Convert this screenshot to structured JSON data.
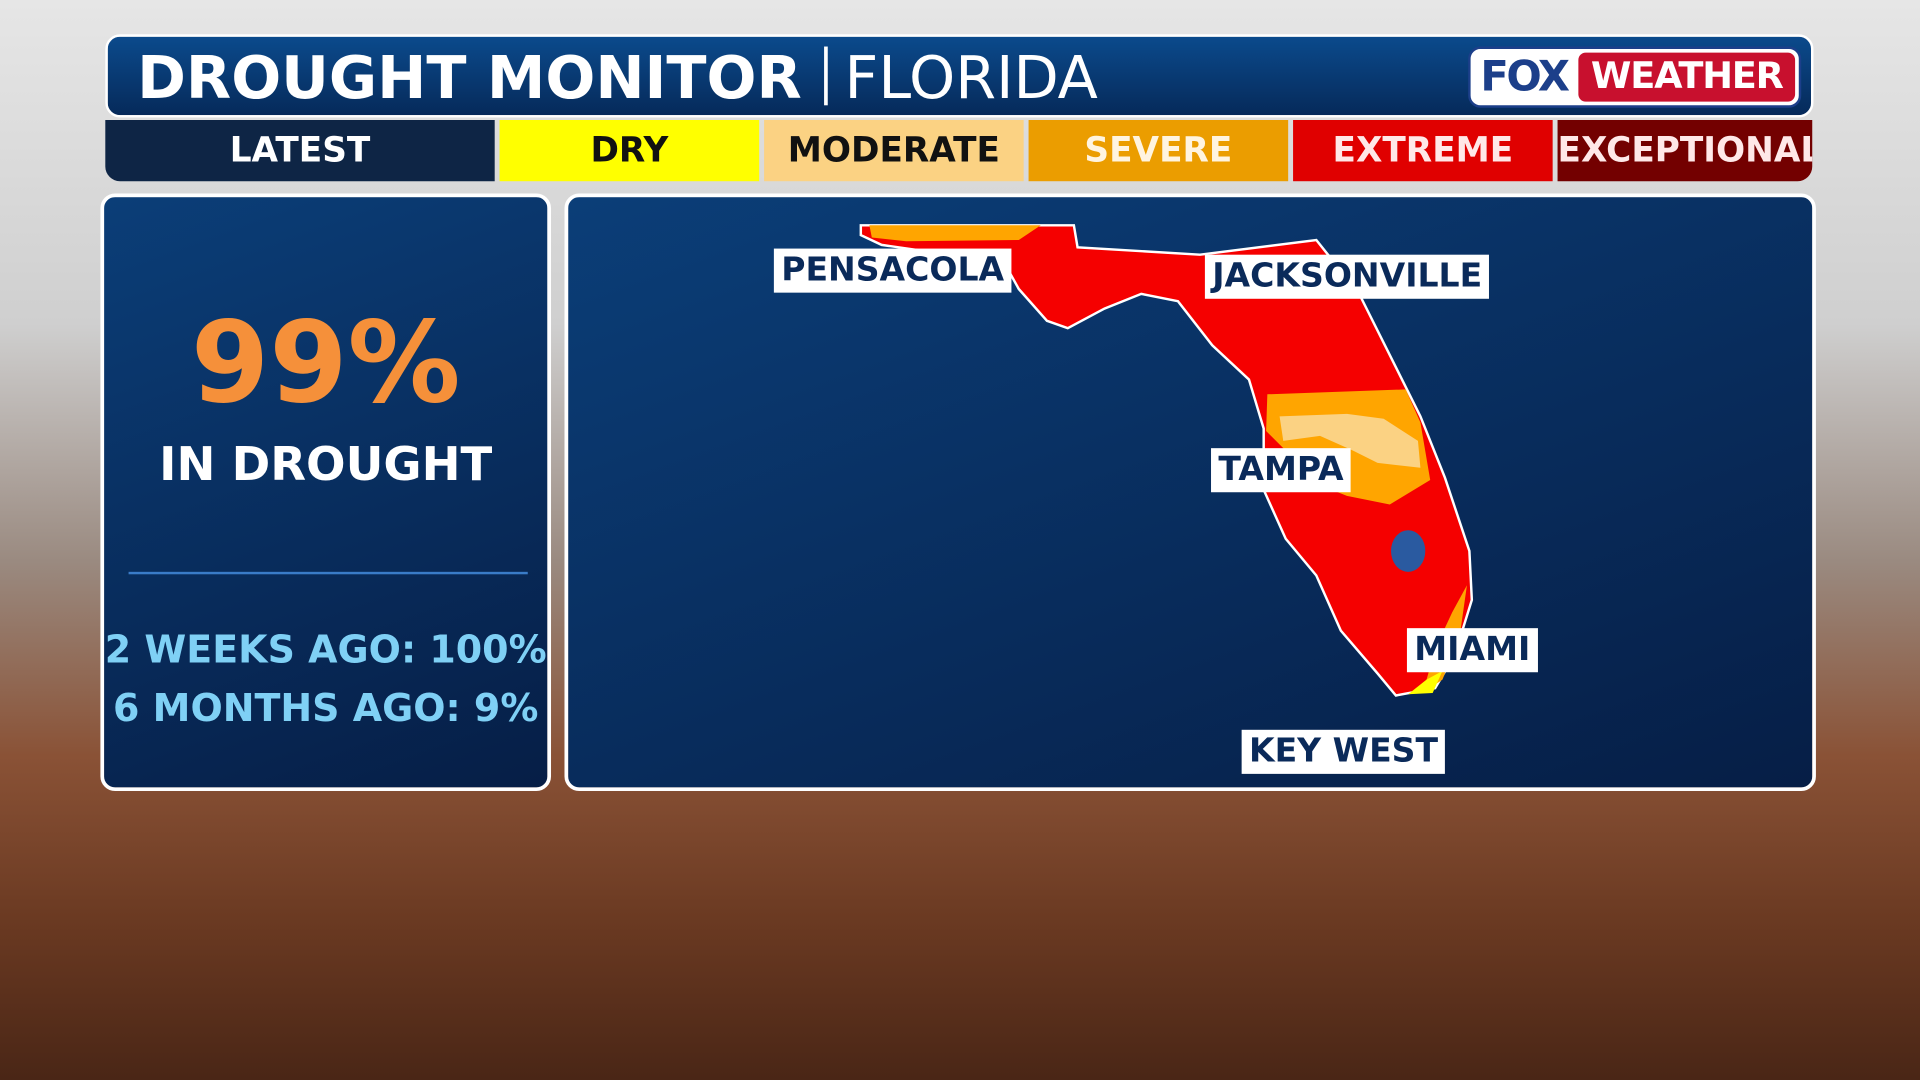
{
  "header": {
    "title": "DROUGHT MONITOR",
    "subtitle": "FLORIDA",
    "logo": {
      "fox": "FOX",
      "weather": "WEATHER"
    }
  },
  "legend": [
    {
      "label": "LATEST",
      "bg": "#0e2545",
      "fg": "#ffffff"
    },
    {
      "label": "DRY",
      "bg": "#ffff00",
      "fg": "#111111"
    },
    {
      "label": "MODERATE",
      "bg": "#fbd283",
      "fg": "#111111"
    },
    {
      "label": "SEVERE",
      "bg": "#eb9d00",
      "fg": "#fff4e0"
    },
    {
      "label": "EXTREME",
      "bg": "#e00000",
      "fg": "#ffe8e8"
    },
    {
      "label": "EXCEPTIONAL",
      "bg": "#730000",
      "fg": "#ffe8e8"
    }
  ],
  "stats": {
    "current": "99%",
    "current_label": "IN DROUGHT",
    "two_weeks": "2 WEEKS AGO: 100%",
    "six_months": "6 MONTHS AGO: 9%"
  },
  "map": {
    "cities": [
      "PENSACOLA",
      "JACKSONVILLE",
      "TAMPA",
      "MIAMI",
      "KEY WEST"
    ],
    "colors": {
      "dry": "#ffff00",
      "moderate": "#fbd283",
      "severe": "#ffa500",
      "extreme": "#f50000",
      "water": "#2a5aa0"
    }
  }
}
